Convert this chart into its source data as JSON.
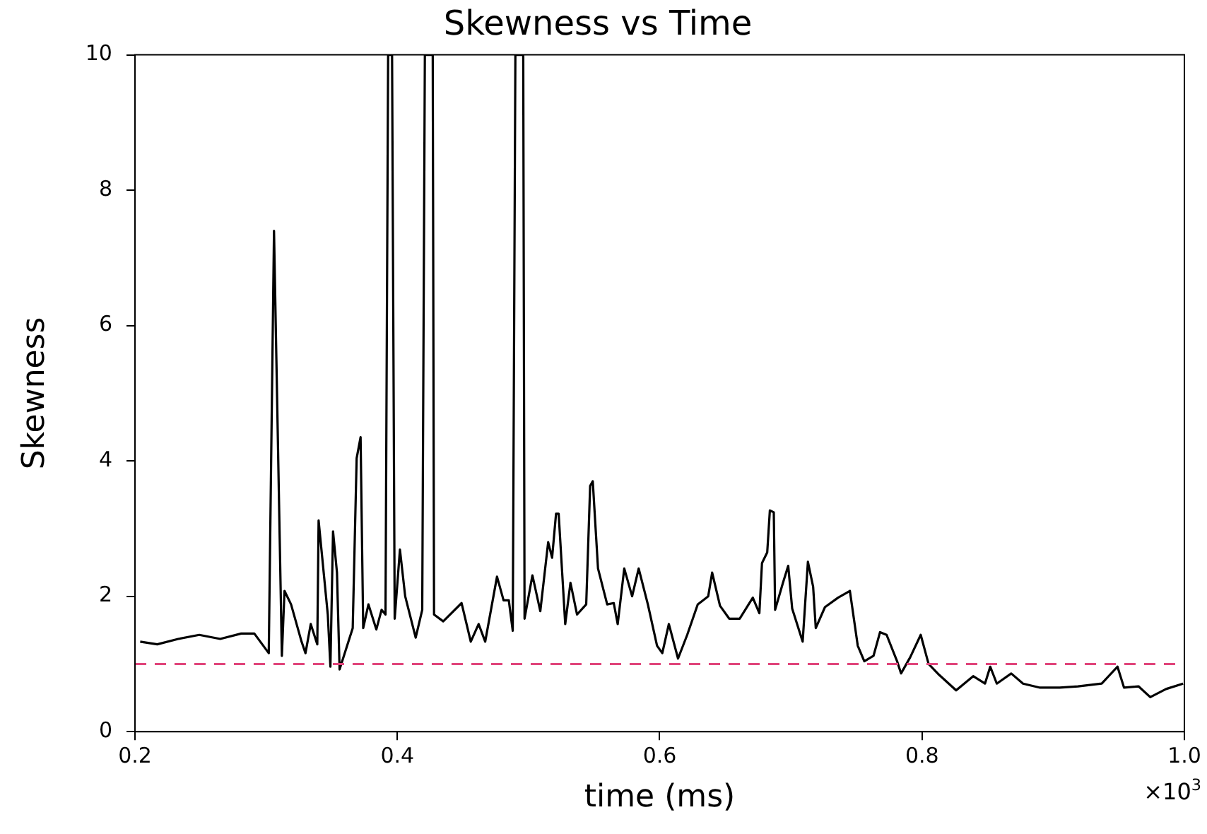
{
  "chart_data": {
    "type": "line",
    "title": "Skewness vs Time",
    "xlabel": "time (ms)",
    "ylabel": "Skewness",
    "annotations": [
      "×10$^{3}$"
    ],
    "xlim": [
      0.2,
      1.0
    ],
    "xticks": [
      0.2,
      0.4,
      0.6,
      0.8,
      {
        "value": 1,
        "label": "1.0"
      }
    ],
    "ylim": [
      0,
      10
    ],
    "yticks": [
      0,
      2,
      4,
      6,
      8,
      10
    ],
    "grid": false,
    "legend": false,
    "marker": "none",
    "line_style": "solid",
    "ref_lines": [
      {
        "axis": "y",
        "value": 1,
        "color": "#e0457b",
        "line_style": "dashed"
      }
    ],
    "series": [
      {
        "color": "#000000",
        "x": [
          0.204,
          0.217,
          0.233,
          0.249,
          0.265,
          0.281,
          0.291,
          0.302,
          0.306,
          0.312,
          0.314,
          0.319,
          0.327,
          0.33,
          0.334,
          0.339,
          0.34,
          0.347,
          0.349,
          0.351,
          0.354,
          0.356,
          0.366,
          0.369,
          0.372,
          0.374,
          0.378,
          0.384,
          0.388,
          0.391,
          0.393,
          0.396,
          0.398,
          0.402,
          0.406,
          0.414,
          0.419,
          0.421,
          0.427,
          0.428,
          0.435,
          0.449,
          0.456,
          0.462,
          0.467,
          0.476,
          0.481,
          0.485,
          0.488,
          0.49,
          0.496,
          0.497,
          0.503,
          0.509,
          0.515,
          0.518,
          0.521,
          0.523,
          0.528,
          0.532,
          0.537,
          0.544,
          0.547,
          0.549,
          0.553,
          0.56,
          0.565,
          0.568,
          0.573,
          0.579,
          0.584,
          0.591,
          0.598,
          0.602,
          0.607,
          0.614,
          0.621,
          0.629,
          0.637,
          0.64,
          0.646,
          0.653,
          0.661,
          0.671,
          0.676,
          0.678,
          0.682,
          0.684,
          0.687,
          0.688,
          0.694,
          0.698,
          0.701,
          0.709,
          0.713,
          0.717,
          0.719,
          0.726,
          0.736,
          0.745,
          0.751,
          0.756,
          0.763,
          0.768,
          0.773,
          0.781,
          0.784,
          0.791,
          0.799,
          0.805,
          0.813,
          0.826,
          0.839,
          0.848,
          0.852,
          0.857,
          0.868,
          0.877,
          0.89,
          0.905,
          0.919,
          0.937,
          0.949,
          0.954,
          0.965,
          0.974,
          0.986,
          0.999
        ],
        "values": [
          1.33,
          1.29,
          1.37,
          1.43,
          1.37,
          1.45,
          1.45,
          1.16,
          7.4,
          1.12,
          2.08,
          1.88,
          1.33,
          1.16,
          1.59,
          1.29,
          3.12,
          1.73,
          0.96,
          2.96,
          2.35,
          0.92,
          1.53,
          4.04,
          4.35,
          1.53,
          1.88,
          1.51,
          1.8,
          1.73,
          10,
          10,
          1.67,
          2.69,
          2.0,
          1.39,
          1.8,
          10,
          10,
          1.73,
          1.63,
          1.9,
          1.33,
          1.59,
          1.33,
          2.29,
          1.94,
          1.94,
          1.49,
          10,
          10,
          1.67,
          2.31,
          1.78,
          2.8,
          2.57,
          3.22,
          3.22,
          1.59,
          2.2,
          1.73,
          1.88,
          3.63,
          3.7,
          2.41,
          1.88,
          1.9,
          1.59,
          2.41,
          2.0,
          2.41,
          1.88,
          1.27,
          1.16,
          1.59,
          1.08,
          1.43,
          1.88,
          2.0,
          2.35,
          1.86,
          1.67,
          1.67,
          1.98,
          1.75,
          2.49,
          2.65,
          3.27,
          3.24,
          1.8,
          2.2,
          2.45,
          1.82,
          1.33,
          2.51,
          2.14,
          1.53,
          1.84,
          1.98,
          2.08,
          1.27,
          1.04,
          1.12,
          1.47,
          1.43,
          1.04,
          0.86,
          1.1,
          1.43,
          1.0,
          0.84,
          0.61,
          0.82,
          0.71,
          0.96,
          0.71,
          0.86,
          0.71,
          0.65,
          0.65,
          0.67,
          0.71,
          0.96,
          0.65,
          0.67,
          0.51,
          0.63,
          0.71
        ]
      }
    ]
  }
}
